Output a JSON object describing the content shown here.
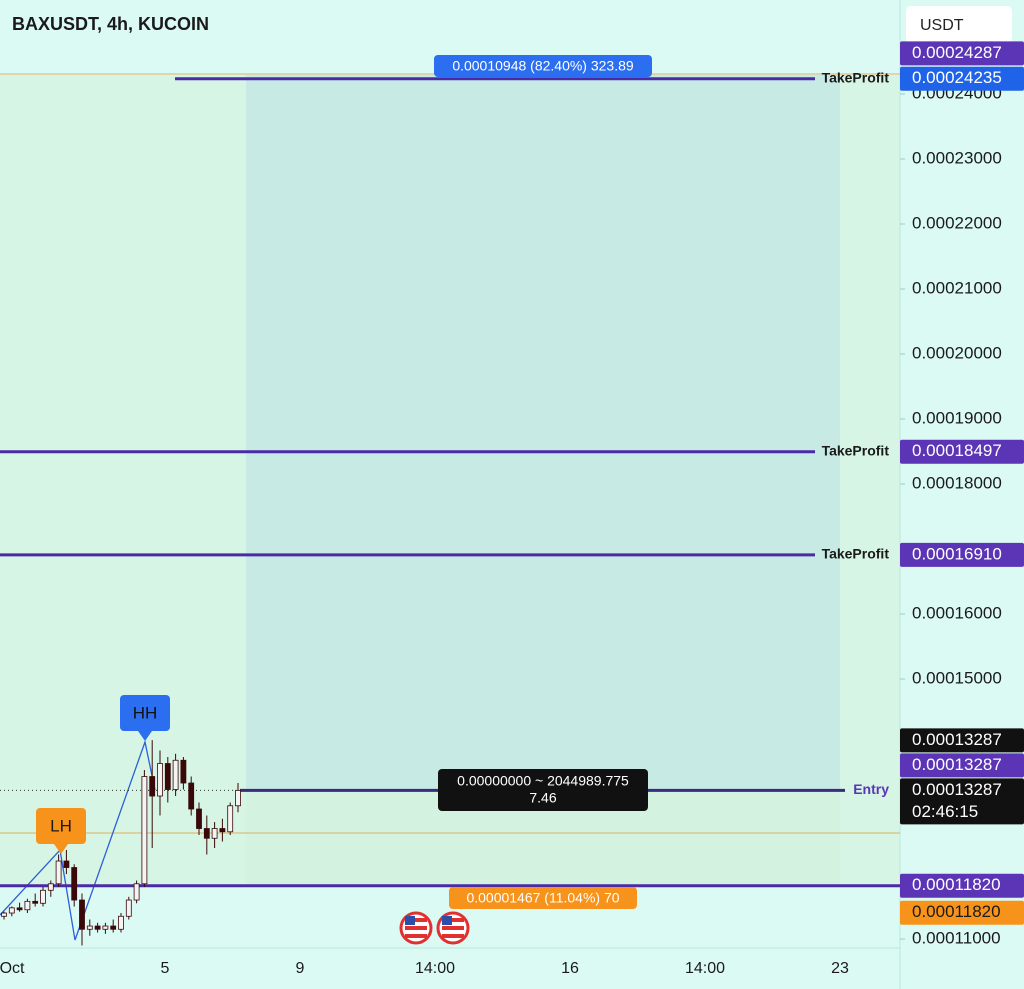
{
  "chart_data": {
    "type": "candlestick",
    "title": "BAXUSDT, 4h, KUCOIN",
    "currency": "USDT",
    "ylim": [
      0.00010862,
      0.00025446
    ],
    "yticks": [
      {
        "value": 0.00024,
        "label": "0.00024000"
      },
      {
        "value": 0.00023,
        "label": "0.00023000"
      },
      {
        "value": 0.00022,
        "label": "0.00022000"
      },
      {
        "value": 0.00021,
        "label": "0.00021000"
      },
      {
        "value": 0.0002,
        "label": "0.00020000"
      },
      {
        "value": 0.00019,
        "label": "0.00019000"
      },
      {
        "value": 0.00018,
        "label": "0.00018000"
      },
      {
        "value": 0.00016,
        "label": "0.00016000"
      },
      {
        "value": 0.00015,
        "label": "0.00015000"
      },
      {
        "value": 0.00011,
        "label": "0.00011000"
      }
    ],
    "x_labels": [
      "Oct",
      "5",
      "9",
      "14:00",
      "16",
      "14:00",
      "23"
    ],
    "up_color": "#f4f4f4",
    "down_color": "#3a0808",
    "open": [
      0.0001135,
      0.000114,
      0.0001148,
      0.0001145,
      0.0001158,
      0.0001155,
      0.0001175,
      0.0001185,
      0.000122,
      0.000121,
      0.000116,
      0.0001115,
      0.000112,
      0.0001115,
      0.000112,
      0.0001115,
      0.0001135,
      0.000116,
      0.0001185,
      0.000135,
      0.000132,
      0.000137,
      0.000133,
      0.0001375,
      0.000134,
      0.00013,
      0.000127,
      0.0001255,
      0.000127,
      0.0001265,
      0.0001305
    ],
    "high": [
      0.0001142,
      0.000115,
      0.0001156,
      0.0001162,
      0.000117,
      0.000118,
      0.000119,
      0.000123,
      0.0001237,
      0.0001215,
      0.000117,
      0.000113,
      0.0001125,
      0.0001125,
      0.000113,
      0.000114,
      0.0001165,
      0.000119,
      0.000136,
      0.0001406,
      0.000139,
      0.000138,
      0.0001385,
      0.000138,
      0.000135,
      0.000131,
      0.000129,
      0.000128,
      0.0001285,
      0.000131,
      0.000134
    ],
    "low": [
      0.000113,
      0.0001135,
      0.0001142,
      0.000114,
      0.000115,
      0.000115,
      0.0001165,
      0.000118,
      0.00012,
      0.000115,
      0.000109,
      0.0001105,
      0.000111,
      0.0001108,
      0.000111,
      0.000111,
      0.000113,
      0.0001155,
      0.000118,
      0.000124,
      0.000129,
      0.000131,
      0.000132,
      0.000133,
      0.000129,
      0.000126,
      0.000123,
      0.000124,
      0.000125,
      0.000126,
      0.0001295
    ],
    "close": [
      0.000114,
      0.0001148,
      0.0001145,
      0.0001158,
      0.0001155,
      0.0001175,
      0.0001185,
      0.000122,
      0.000121,
      0.000116,
      0.0001115,
      0.000112,
      0.0001115,
      0.000112,
      0.0001115,
      0.0001135,
      0.000116,
      0.0001185,
      0.000135,
      0.000132,
      0.000137,
      0.000133,
      0.0001375,
      0.000134,
      0.00013,
      0.000127,
      0.0001255,
      0.000127,
      0.0001265,
      0.0001305,
      0.00013287
    ],
    "levels": [
      {
        "name": "TakeProfit",
        "price": 0.00024235,
        "color": "#4b2aa6"
      },
      {
        "name": "TakeProfit",
        "price": 0.00018497,
        "color": "#4b2aa6"
      },
      {
        "name": "TakeProfit",
        "price": 0.0001691,
        "color": "#4b2aa6"
      },
      {
        "name": "Entry",
        "price": 0.00013287,
        "color": "#3a2a80"
      },
      {
        "price": 0.0001182,
        "color": "#4b2aa6"
      }
    ],
    "price_tags": [
      {
        "value": 0.00024287,
        "color": "#5b35b5"
      },
      {
        "value": 0.00024235,
        "color": "#1e63e8"
      },
      {
        "value": 0.00018497,
        "color": "#5b35b5"
      },
      {
        "value": 0.0001691,
        "label": "0.00016910",
        "color": "#5b35b5"
      },
      {
        "value": 0.00013287,
        "color": "#111111"
      },
      {
        "value": 0.00013287,
        "color": "#5b35b5"
      },
      {
        "value": 0.00013287,
        "color": "#111111"
      },
      {
        "value": 0.0001182,
        "label": "0.00011820",
        "color": "#5b35b5"
      },
      {
        "value": 0.0001182,
        "label": "0.00011820",
        "color": "#f7931a"
      }
    ],
    "countdown": "02:46:15",
    "markers": [
      "LH",
      "HH"
    ],
    "profit_label": "0.00010948 (82.40%) 323.89",
    "stop_label": "0.00001467 (11.04%) 70",
    "position_label": [
      "0.00000000 ~ 2044989.775",
      "7.46"
    ]
  }
}
